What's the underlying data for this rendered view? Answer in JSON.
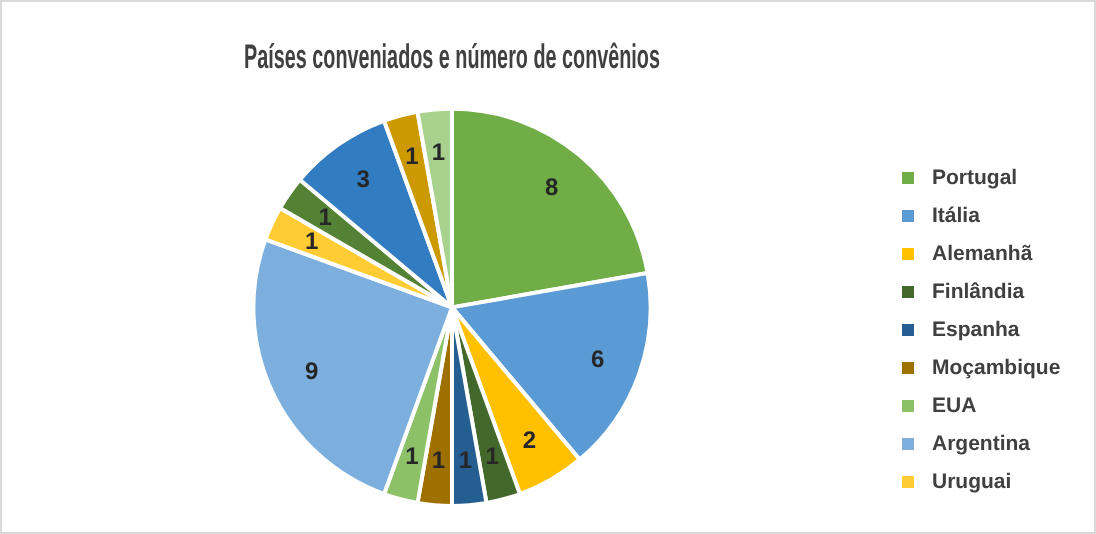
{
  "chart_data": {
    "type": "pie",
    "title": "Países conveniados e número de convênios",
    "categories": [
      "Portugal",
      "Itália",
      "Alemanhã",
      "Finlândia",
      "Espanha",
      "Moçambique",
      "EUA",
      "Argentina",
      "Uruguai",
      null,
      null,
      null,
      null
    ],
    "values": [
      8,
      6,
      2,
      1,
      1,
      1,
      1,
      9,
      1,
      1,
      3,
      1,
      1
    ],
    "colors": [
      "#70ad47",
      "#5b9bd5",
      "#ffc000",
      "#43682b",
      "#255e91",
      "#9e7000",
      "#8cc168",
      "#7cafdd",
      "#ffcd33",
      "#548235",
      "#327dc2",
      "#cc9a00",
      "#a9d18e"
    ],
    "data_labels": true,
    "legend": "right"
  }
}
